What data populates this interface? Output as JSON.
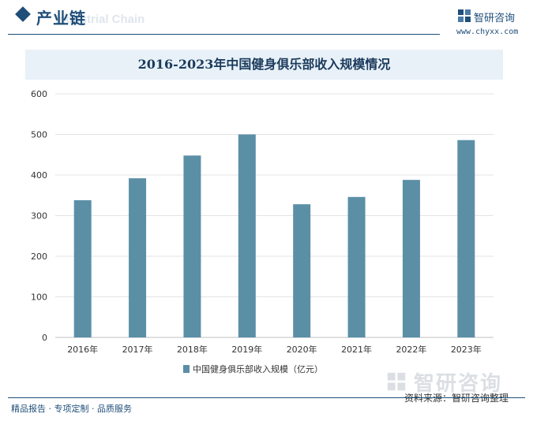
{
  "header": {
    "title": "产业链",
    "watermark": "Industrial Chain"
  },
  "brand": {
    "name": "智研咨询",
    "url": "www.chyxx.com"
  },
  "chart_data": {
    "type": "bar",
    "title": "2016-2023年中国健身俱乐部收入规模情况",
    "categories": [
      "2016年",
      "2017年",
      "2018年",
      "2019年",
      "2020年",
      "2021年",
      "2022年",
      "2023年"
    ],
    "series": [
      {
        "name": "中国健身俱乐部收入规模（亿元）",
        "values": [
          338,
          392,
          448,
          500,
          328,
          346,
          388,
          486
        ],
        "color": "#5b8fa6"
      }
    ],
    "ylim": [
      0,
      600
    ],
    "yticks": [
      0,
      100,
      200,
      300,
      400,
      500,
      600
    ],
    "grid": true,
    "legend_position": "bottom"
  },
  "footer": {
    "tagline": "精品报告 · 专项定制 · 品质服务",
    "source": "资料来源：智研咨询整理",
    "watermark": "智研咨询"
  }
}
